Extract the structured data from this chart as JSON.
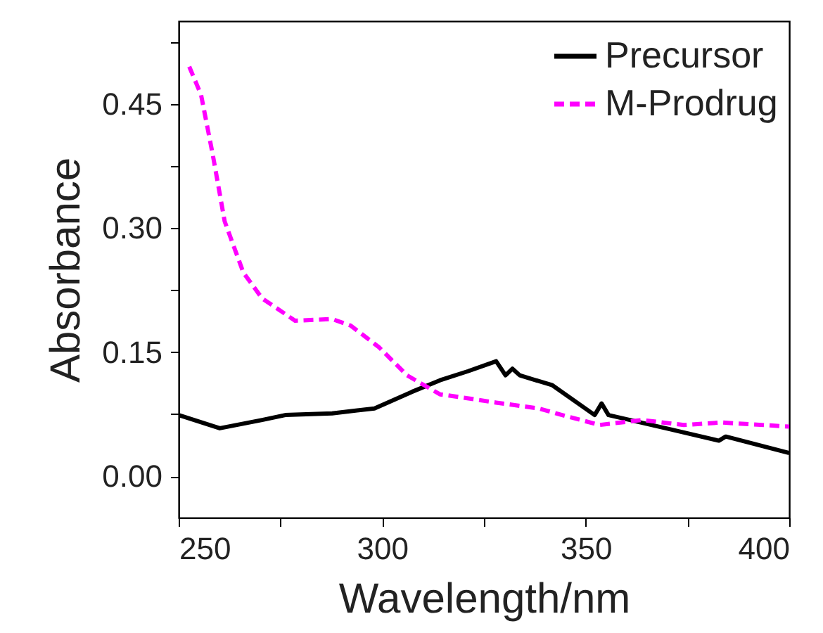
{
  "chart_data": {
    "type": "line",
    "xlabel": "Wavelength/nm",
    "ylabel": "Absorbance",
    "xlim": [
      250,
      400
    ],
    "ylim": [
      -0.05,
      0.55
    ],
    "xticks": [
      250,
      {
        "value": 275,
        "label": null
      },
      300,
      {
        "value": 325,
        "label": null
      },
      350,
      {
        "value": 375,
        "label": null
      },
      400
    ],
    "yticks": [
      {
        "value": 0,
        "label": "0.00"
      },
      {
        "value": 0.075,
        "label": null
      },
      0.15,
      {
        "value": 0.225,
        "label": null
      },
      {
        "value": 0.3,
        "label": "0.30"
      },
      {
        "value": 0.375,
        "label": null
      },
      0.45,
      {
        "value": 0.525,
        "label": null
      }
    ],
    "grid": false,
    "legend": "top right",
    "series": [
      {
        "name": "Precursor",
        "color": "#000000",
        "line_style": "solid",
        "x": [
          250,
          260.1,
          270.5,
          276.2,
          287.7,
          298.1,
          307.3,
          314.2,
          321.1,
          328,
          330.3,
          332,
          333.8,
          341.8,
          352.2,
          353.9,
          355.6,
          370.6,
          382.7,
          384.4,
          400
        ],
        "values": [
          0.074,
          0.058,
          0.068,
          0.074,
          0.076,
          0.082,
          0.102,
          0.116,
          0.127,
          0.139,
          0.122,
          0.13,
          0.122,
          0.11,
          0.074,
          0.088,
          0.074,
          0.057,
          0.043,
          0.048,
          0.028
        ]
      },
      {
        "name": "M-Prodrug",
        "color": "#ff00ff",
        "line_style": "dashed",
        "x": [
          252.6,
          255.5,
          258.4,
          261.3,
          265.9,
          270.5,
          278.6,
          287.7,
          292.3,
          299.2,
          306.1,
          314.2,
          318.6,
          328,
          338.4,
          344.2,
          353.4,
          363.8,
          374.1,
          383.3,
          400
        ],
        "values": [
          0.495,
          0.461,
          0.388,
          0.308,
          0.246,
          0.215,
          0.188,
          0.19,
          0.182,
          0.156,
          0.122,
          0.099,
          0.096,
          0.089,
          0.082,
          0.074,
          0.062,
          0.068,
          0.062,
          0.065,
          0.06
        ]
      }
    ]
  }
}
